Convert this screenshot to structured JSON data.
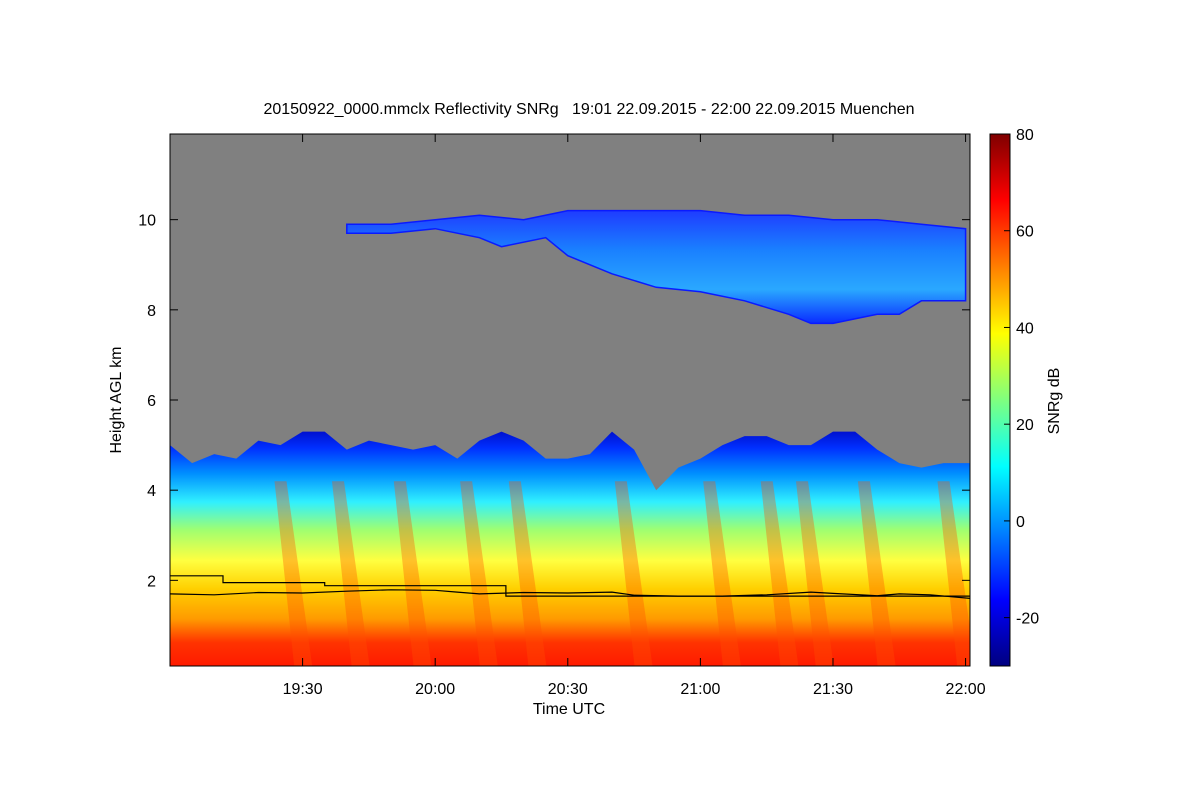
{
  "chart_data": {
    "type": "heatmap",
    "title": "20150922_0000.mmclx Reflectivity SNRg   19:01 22.09.2015 - 22:00 22.09.2015 Muenchen",
    "xlabel": "Time UTC",
    "ylabel": "Height AGL km",
    "x_ticks": [
      "19:30",
      "20:00",
      "20:30",
      "21:00",
      "21:30",
      "22:00"
    ],
    "x_tick_minutes": [
      1170,
      1200,
      1230,
      1260,
      1290,
      1320
    ],
    "xlim_minutes": [
      1140,
      1321
    ],
    "y_ticks": [
      2,
      4,
      6,
      8,
      10
    ],
    "ylim": [
      0.1,
      11.9
    ],
    "background_color": "#808080",
    "colorbar": {
      "label": "SNRg dB",
      "ticks": [
        -20,
        0,
        20,
        40,
        60,
        80
      ],
      "range": [
        -30,
        80
      ],
      "colormap": [
        "#00007f",
        "#0000ff",
        "#007fff",
        "#00ffff",
        "#7fff7f",
        "#ffff00",
        "#ff7f00",
        "#ff0000",
        "#7f0000"
      ]
    },
    "low_echo_layer": {
      "top_km_series": [
        [
          1140,
          5.0
        ],
        [
          1145,
          4.6
        ],
        [
          1150,
          4.8
        ],
        [
          1155,
          4.7
        ],
        [
          1160,
          5.1
        ],
        [
          1165,
          5.0
        ],
        [
          1170,
          5.3
        ],
        [
          1175,
          5.3
        ],
        [
          1180,
          4.9
        ],
        [
          1185,
          5.1
        ],
        [
          1190,
          5.0
        ],
        [
          1195,
          4.9
        ],
        [
          1200,
          5.0
        ],
        [
          1205,
          4.7
        ],
        [
          1210,
          5.1
        ],
        [
          1215,
          5.3
        ],
        [
          1220,
          5.1
        ],
        [
          1225,
          4.7
        ],
        [
          1230,
          4.7
        ],
        [
          1235,
          4.8
        ],
        [
          1240,
          5.3
        ],
        [
          1245,
          4.9
        ],
        [
          1250,
          4.0
        ],
        [
          1255,
          4.5
        ],
        [
          1260,
          4.7
        ],
        [
          1265,
          5.0
        ],
        [
          1270,
          5.2
        ],
        [
          1275,
          5.2
        ],
        [
          1280,
          5.0
        ],
        [
          1285,
          5.0
        ],
        [
          1290,
          5.3
        ],
        [
          1295,
          5.3
        ],
        [
          1300,
          4.9
        ],
        [
          1305,
          4.6
        ],
        [
          1310,
          4.5
        ],
        [
          1315,
          4.6
        ],
        [
          1320,
          4.6
        ]
      ],
      "intense_bands_minutes": [
        1165,
        1178,
        1192,
        1207,
        1218,
        1242,
        1262,
        1275,
        1283,
        1297,
        1315
      ]
    },
    "cirrus_layer": {
      "top_km_series": [
        [
          1180,
          9.9
        ],
        [
          1190,
          9.9
        ],
        [
          1200,
          10.0
        ],
        [
          1210,
          10.1
        ],
        [
          1220,
          10.0
        ],
        [
          1230,
          10.2
        ],
        [
          1240,
          10.2
        ],
        [
          1250,
          10.2
        ],
        [
          1260,
          10.2
        ],
        [
          1270,
          10.1
        ],
        [
          1280,
          10.1
        ],
        [
          1290,
          10.0
        ],
        [
          1300,
          10.0
        ],
        [
          1310,
          9.9
        ],
        [
          1320,
          9.8
        ]
      ],
      "base_km_series": [
        [
          1180,
          9.7
        ],
        [
          1190,
          9.7
        ],
        [
          1200,
          9.8
        ],
        [
          1210,
          9.6
        ],
        [
          1215,
          9.4
        ],
        [
          1225,
          9.6
        ],
        [
          1230,
          9.2
        ],
        [
          1240,
          8.8
        ],
        [
          1250,
          8.5
        ],
        [
          1260,
          8.4
        ],
        [
          1270,
          8.2
        ],
        [
          1280,
          7.9
        ],
        [
          1285,
          7.7
        ],
        [
          1290,
          7.7
        ],
        [
          1300,
          7.9
        ],
        [
          1305,
          7.9
        ],
        [
          1310,
          8.2
        ],
        [
          1320,
          8.2
        ]
      ]
    },
    "overlay_lines": [
      {
        "color": "#000000",
        "points": [
          [
            1140,
            2.1
          ],
          [
            1152,
            2.1
          ],
          [
            1152,
            1.95
          ],
          [
            1175,
            1.95
          ],
          [
            1175,
            1.88
          ],
          [
            1216,
            1.88
          ],
          [
            1216,
            1.65
          ],
          [
            1321,
            1.65
          ]
        ]
      },
      {
        "color": "#000000",
        "points": [
          [
            1140,
            1.7
          ],
          [
            1150,
            1.68
          ],
          [
            1160,
            1.73
          ],
          [
            1170,
            1.72
          ],
          [
            1180,
            1.76
          ],
          [
            1190,
            1.79
          ],
          [
            1200,
            1.78
          ],
          [
            1205,
            1.74
          ],
          [
            1210,
            1.7
          ],
          [
            1220,
            1.73
          ],
          [
            1230,
            1.72
          ],
          [
            1240,
            1.74
          ],
          [
            1245,
            1.67
          ],
          [
            1255,
            1.65
          ],
          [
            1265,
            1.65
          ],
          [
            1275,
            1.68
          ],
          [
            1285,
            1.74
          ],
          [
            1290,
            1.71
          ],
          [
            1300,
            1.66
          ],
          [
            1305,
            1.7
          ],
          [
            1312,
            1.68
          ],
          [
            1321,
            1.6
          ]
        ]
      }
    ]
  }
}
